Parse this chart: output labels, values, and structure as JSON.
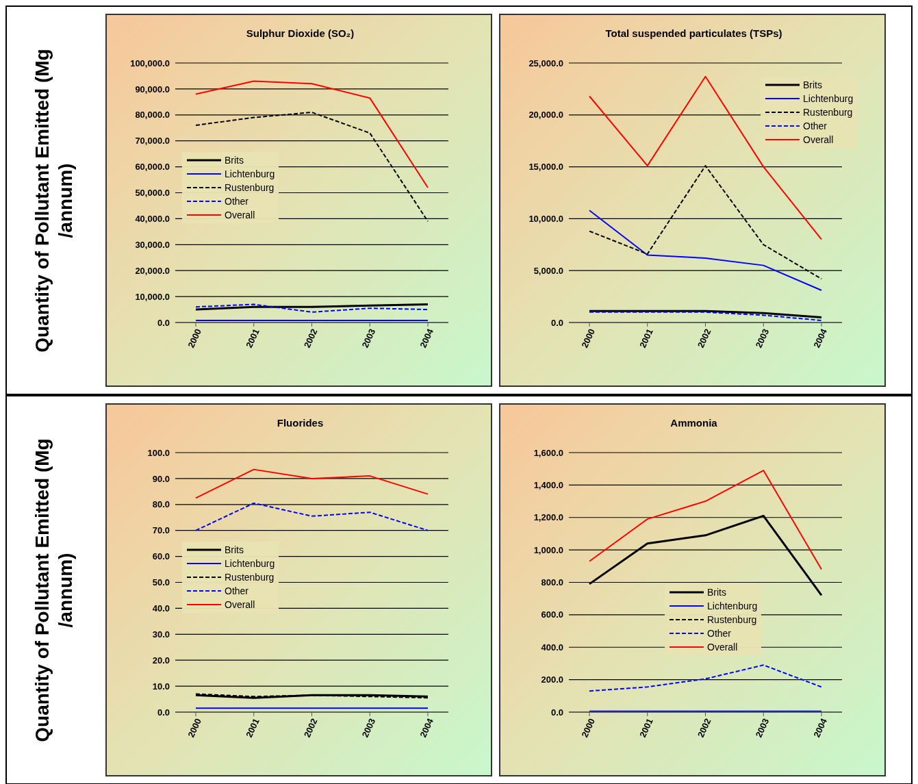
{
  "chart_data": [
    {
      "type": "line",
      "title": "Sulphur Dioxide (SO₂)",
      "ylabel": "Quantity of Pollutant Emitted (Mg /annum)",
      "categories": [
        "2000",
        "2001",
        "2002",
        "2003",
        "2004"
      ],
      "ylim": [
        0,
        100000
      ],
      "yticks": [
        {
          "value": 0,
          "label": "0.0"
        },
        {
          "value": 10000,
          "label": "10,000.0"
        },
        {
          "value": 20000,
          "label": "20,000.0"
        },
        {
          "value": 30000,
          "label": "30,000.0"
        },
        {
          "value": 40000,
          "label": "40,000.0"
        },
        {
          "value": 50000,
          "label": "50,000.0"
        },
        {
          "value": 60000,
          "label": "60,000.0"
        },
        {
          "value": 70000,
          "label": "70,000.0"
        },
        {
          "value": 80000,
          "label": "80,000.0"
        },
        {
          "value": 90000,
          "label": "90,000.0"
        },
        {
          "value": 100000,
          "label": "100,000.0"
        }
      ],
      "grid": "y",
      "legend": "left",
      "marker": "none",
      "series": [
        {
          "name": "Brits",
          "color": "#000000",
          "line_style": "solid",
          "values": [
            5000,
            6000,
            6000,
            6500,
            7000
          ]
        },
        {
          "name": "Lichtenburg",
          "color": "#0000ff",
          "line_style": "solid",
          "values": [
            800,
            800,
            800,
            800,
            800
          ]
        },
        {
          "name": "Rustenburg",
          "color": "#000000",
          "line_style": "dashed",
          "values": [
            76000,
            79000,
            81000,
            73000,
            39000
          ]
        },
        {
          "name": "Other",
          "color": "#0000ff",
          "line_style": "dashed",
          "values": [
            6000,
            7000,
            4000,
            5500,
            5000
          ]
        },
        {
          "name": "Overall",
          "color": "#ff0000",
          "line_style": "solid",
          "values": [
            88000,
            93000,
            92000,
            86500,
            52000
          ]
        }
      ]
    },
    {
      "type": "line",
      "title": "Total suspended particulates (TSPs)",
      "categories": [
        "2000",
        "2001",
        "2002",
        "2003",
        "2004"
      ],
      "ylim": [
        0,
        25000
      ],
      "yticks": [
        {
          "value": 0,
          "label": "0.0"
        },
        {
          "value": 5000,
          "label": "5,000.0"
        },
        {
          "value": 10000,
          "label": "10,000.0"
        },
        {
          "value": 15000,
          "label": "15,000.0"
        },
        {
          "value": 20000,
          "label": "20,000.0"
        },
        {
          "value": 25000,
          "label": "25,000.0"
        }
      ],
      "grid": "y",
      "legend": "top right",
      "marker": "none",
      "series": [
        {
          "name": "Brits",
          "color": "#000000",
          "line_style": "solid",
          "values": [
            1100,
            1100,
            1100,
            900,
            500
          ]
        },
        {
          "name": "Lichtenburg",
          "color": "#0000ff",
          "line_style": "solid",
          "values": [
            10800,
            6500,
            6200,
            5500,
            3100
          ]
        },
        {
          "name": "Rustenburg",
          "color": "#000000",
          "line_style": "dashed",
          "values": [
            8800,
            6600,
            15100,
            7500,
            4200
          ]
        },
        {
          "name": "Other",
          "color": "#0000ff",
          "line_style": "dashed",
          "values": [
            1000,
            1000,
            1000,
            700,
            200
          ]
        },
        {
          "name": "Overall",
          "color": "#ff0000",
          "line_style": "solid",
          "values": [
            21800,
            15100,
            23700,
            15000,
            8000
          ]
        }
      ]
    },
    {
      "type": "line",
      "title": "Fluorides",
      "ylabel": "Quantity of Pollutant Emitted (Mg /annum)",
      "categories": [
        "2000",
        "2001",
        "2002",
        "2003",
        "2004"
      ],
      "ylim": [
        0,
        100
      ],
      "yticks": [
        {
          "value": 0,
          "label": "0.0"
        },
        {
          "value": 10,
          "label": "10.0"
        },
        {
          "value": 20,
          "label": "20.0"
        },
        {
          "value": 30,
          "label": "30.0"
        },
        {
          "value": 40,
          "label": "40.0"
        },
        {
          "value": 50,
          "label": "50.0"
        },
        {
          "value": 60,
          "label": "60.0"
        },
        {
          "value": 70,
          "label": "70.0"
        },
        {
          "value": 80,
          "label": "80.0"
        },
        {
          "value": 90,
          "label": "90.0"
        },
        {
          "value": 100,
          "label": "100.0"
        }
      ],
      "grid": "y",
      "legend": "left",
      "marker": "none",
      "series": [
        {
          "name": "Brits",
          "color": "#000000",
          "line_style": "solid",
          "values": [
            6.5,
            5.5,
            6.5,
            6.5,
            6
          ]
        },
        {
          "name": "Lichtenburg",
          "color": "#0000ff",
          "line_style": "solid",
          "values": [
            1.5,
            1.5,
            1.5,
            1.5,
            1.5
          ]
        },
        {
          "name": "Rustenburg",
          "color": "#000000",
          "line_style": "dashed",
          "values": [
            7,
            6,
            6.5,
            6,
            5.5
          ]
        },
        {
          "name": "Other",
          "color": "#0000ff",
          "line_style": "dashed",
          "values": [
            70,
            80.5,
            75.5,
            77,
            70
          ]
        },
        {
          "name": "Overall",
          "color": "#ff0000",
          "line_style": "solid",
          "values": [
            82.5,
            93.5,
            90,
            91,
            84
          ]
        }
      ]
    },
    {
      "type": "line",
      "title": "Ammonia",
      "categories": [
        "2000",
        "2001",
        "2002",
        "2003",
        "2004"
      ],
      "ylim": [
        0,
        1600
      ],
      "yticks": [
        {
          "value": 0,
          "label": "0.0"
        },
        {
          "value": 200,
          "label": "200.0"
        },
        {
          "value": 400,
          "label": "400.0"
        },
        {
          "value": 600,
          "label": "600.0"
        },
        {
          "value": 800,
          "label": "800.0"
        },
        {
          "value": 1000,
          "label": "1,000.0"
        },
        {
          "value": 1200,
          "label": "1,200.0"
        },
        {
          "value": 1400,
          "label": "1,400.0"
        },
        {
          "value": 1600,
          "label": "1,600.0"
        }
      ],
      "grid": "y",
      "legend": "bottom right",
      "marker": "none",
      "series": [
        {
          "name": "Brits",
          "color": "#000000",
          "line_style": "solid",
          "values": [
            790,
            1040,
            1090,
            1210,
            720
          ]
        },
        {
          "name": "Lichtenburg",
          "color": "#0000ff",
          "line_style": "solid",
          "values": [
            5,
            5,
            5,
            5,
            5
          ]
        },
        {
          "name": "Rustenburg",
          "color": "#000000",
          "line_style": "dashed",
          "values": [
            null,
            null,
            null,
            null,
            null
          ]
        },
        {
          "name": "Other",
          "color": "#0000ff",
          "line_style": "dashed",
          "values": [
            130,
            155,
            205,
            290,
            155
          ]
        },
        {
          "name": "Overall",
          "color": "#ff0000",
          "line_style": "solid",
          "values": [
            930,
            1190,
            1300,
            1490,
            880
          ]
        }
      ]
    }
  ]
}
